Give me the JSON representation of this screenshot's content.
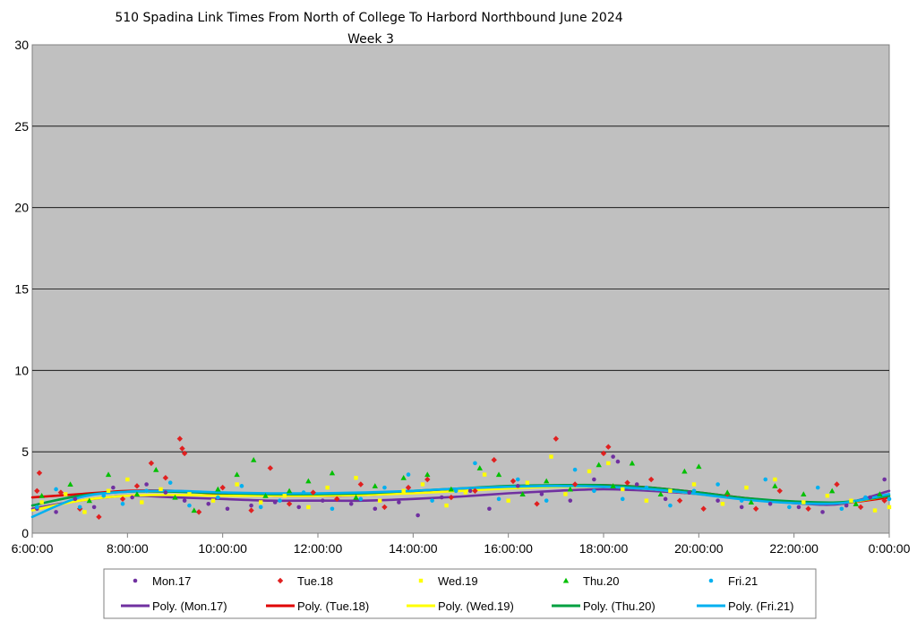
{
  "chart_data": {
    "type": "scatter",
    "title": "510 Spadina Link Times From North of College To Harbord Northbound June 2024",
    "subtitle": "Week 3",
    "xlabel": "",
    "ylabel": "",
    "x_range_hours": [
      6,
      24
    ],
    "x_ticks": [
      "6:00:00",
      "8:00:00",
      "10:00:00",
      "12:00:00",
      "14:00:00",
      "16:00:00",
      "18:00:00",
      "20:00:00",
      "22:00:00",
      "0:00:00"
    ],
    "ylim": [
      0,
      30
    ],
    "y_ticks": [
      "0",
      "5",
      "10",
      "15",
      "20",
      "25",
      "30"
    ],
    "grid": "horizontal",
    "plot_background": "#c0c0c0",
    "legend_position": "bottom",
    "series": [
      {
        "name": "Mon.17",
        "marker": "circle",
        "color": "#7030a0",
        "trend_name": "Poly. (Mon.17)",
        "trend": [
          [
            6.0,
            1.5
          ],
          [
            7.0,
            2.0
          ],
          [
            8.0,
            2.3
          ],
          [
            9.0,
            2.2
          ],
          [
            10.0,
            2.1
          ],
          [
            11.0,
            2.0
          ],
          [
            12.0,
            2.0
          ],
          [
            13.0,
            2.0
          ],
          [
            14.0,
            2.1
          ],
          [
            15.0,
            2.25
          ],
          [
            16.0,
            2.45
          ],
          [
            17.0,
            2.6
          ],
          [
            18.0,
            2.7
          ],
          [
            19.0,
            2.6
          ],
          [
            20.0,
            2.4
          ],
          [
            21.0,
            2.1
          ],
          [
            22.0,
            1.85
          ],
          [
            23.0,
            1.8
          ],
          [
            24.0,
            2.6
          ]
        ],
        "points": [
          [
            6.1,
            1.5
          ],
          [
            6.5,
            1.3
          ],
          [
            6.9,
            2.1
          ],
          [
            7.3,
            1.6
          ],
          [
            7.7,
            2.8
          ],
          [
            8.1,
            2.2
          ],
          [
            8.4,
            3.0
          ],
          [
            8.8,
            2.5
          ],
          [
            9.2,
            2.0
          ],
          [
            9.7,
            1.8
          ],
          [
            10.1,
            1.5
          ],
          [
            10.6,
            1.7
          ],
          [
            11.1,
            1.9
          ],
          [
            11.6,
            1.6
          ],
          [
            12.1,
            2.0
          ],
          [
            12.7,
            1.8
          ],
          [
            13.2,
            1.5
          ],
          [
            13.7,
            1.9
          ],
          [
            14.1,
            1.1
          ],
          [
            14.6,
            2.2
          ],
          [
            15.2,
            2.6
          ],
          [
            15.6,
            1.5
          ],
          [
            16.2,
            2.9
          ],
          [
            16.7,
            2.4
          ],
          [
            17.3,
            2.0
          ],
          [
            17.8,
            3.3
          ],
          [
            18.2,
            4.7
          ],
          [
            18.3,
            4.4
          ],
          [
            18.7,
            3.0
          ],
          [
            19.3,
            2.1
          ],
          [
            19.8,
            2.5
          ],
          [
            20.4,
            2.0
          ],
          [
            20.9,
            1.6
          ],
          [
            21.5,
            1.8
          ],
          [
            22.1,
            1.6
          ],
          [
            22.6,
            1.3
          ],
          [
            23.1,
            1.7
          ],
          [
            23.6,
            2.2
          ],
          [
            23.9,
            3.3
          ]
        ]
      },
      {
        "name": "Tue.18",
        "marker": "diamond",
        "color": "#e02020",
        "trend_name": "Poly. (Tue.18)",
        "trend": [
          [
            6.0,
            2.2
          ],
          [
            7.0,
            2.4
          ],
          [
            8.0,
            2.6
          ],
          [
            9.0,
            2.6
          ],
          [
            10.0,
            2.4
          ],
          [
            11.0,
            2.3
          ],
          [
            12.0,
            2.3
          ],
          [
            13.0,
            2.35
          ],
          [
            14.0,
            2.5
          ],
          [
            15.0,
            2.7
          ],
          [
            16.0,
            2.85
          ],
          [
            17.0,
            2.9
          ],
          [
            18.0,
            2.95
          ],
          [
            19.0,
            2.8
          ],
          [
            20.0,
            2.5
          ],
          [
            21.0,
            2.15
          ],
          [
            22.0,
            1.9
          ],
          [
            23.0,
            1.85
          ],
          [
            24.0,
            2.2
          ]
        ],
        "points": [
          [
            6.1,
            2.6
          ],
          [
            6.15,
            3.7
          ],
          [
            6.6,
            2.5
          ],
          [
            7.0,
            1.5
          ],
          [
            7.4,
            1.0
          ],
          [
            7.9,
            2.1
          ],
          [
            8.2,
            2.9
          ],
          [
            8.5,
            4.3
          ],
          [
            8.8,
            3.4
          ],
          [
            9.1,
            5.8
          ],
          [
            9.15,
            5.2
          ],
          [
            9.2,
            4.9
          ],
          [
            9.5,
            1.3
          ],
          [
            10.0,
            2.8
          ],
          [
            10.6,
            1.4
          ],
          [
            11.0,
            4.0
          ],
          [
            11.4,
            1.8
          ],
          [
            11.9,
            2.5
          ],
          [
            12.4,
            2.1
          ],
          [
            12.9,
            3.0
          ],
          [
            13.4,
            1.6
          ],
          [
            13.9,
            2.8
          ],
          [
            14.3,
            3.3
          ],
          [
            14.8,
            2.2
          ],
          [
            15.3,
            2.6
          ],
          [
            15.7,
            4.5
          ],
          [
            16.1,
            3.2
          ],
          [
            16.6,
            1.8
          ],
          [
            17.0,
            5.8
          ],
          [
            17.4,
            3.0
          ],
          [
            18.0,
            4.9
          ],
          [
            18.1,
            5.3
          ],
          [
            18.5,
            3.1
          ],
          [
            19.0,
            3.3
          ],
          [
            19.6,
            2.0
          ],
          [
            20.1,
            1.5
          ],
          [
            20.6,
            2.4
          ],
          [
            21.2,
            1.5
          ],
          [
            21.7,
            2.6
          ],
          [
            22.3,
            1.5
          ],
          [
            22.9,
            3.0
          ],
          [
            23.4,
            1.6
          ],
          [
            23.9,
            2.0
          ]
        ]
      },
      {
        "name": "Wed.19",
        "marker": "square",
        "color": "#ffff00",
        "trend_name": "Poly. (Wed.19)",
        "trend": [
          [
            6.0,
            1.4
          ],
          [
            7.0,
            2.0
          ],
          [
            8.0,
            2.3
          ],
          [
            9.0,
            2.35
          ],
          [
            10.0,
            2.3
          ],
          [
            11.0,
            2.3
          ],
          [
            12.0,
            2.3
          ],
          [
            13.0,
            2.35
          ],
          [
            14.0,
            2.45
          ],
          [
            15.0,
            2.6
          ],
          [
            16.0,
            2.75
          ],
          [
            17.0,
            2.85
          ],
          [
            18.0,
            2.85
          ],
          [
            19.0,
            2.7
          ],
          [
            20.0,
            2.4
          ],
          [
            21.0,
            2.1
          ],
          [
            22.0,
            1.9
          ],
          [
            23.0,
            1.85
          ],
          [
            24.0,
            2.3
          ]
        ],
        "points": [
          [
            6.2,
            1.9
          ],
          [
            6.7,
            2.4
          ],
          [
            7.1,
            1.3
          ],
          [
            7.6,
            2.6
          ],
          [
            8.0,
            3.3
          ],
          [
            8.3,
            1.9
          ],
          [
            8.7,
            2.7
          ],
          [
            9.3,
            2.4
          ],
          [
            9.8,
            2.0
          ],
          [
            10.3,
            3.0
          ],
          [
            10.8,
            1.9
          ],
          [
            11.3,
            2.3
          ],
          [
            11.8,
            1.6
          ],
          [
            12.2,
            2.8
          ],
          [
            12.8,
            3.4
          ],
          [
            13.3,
            2.0
          ],
          [
            13.8,
            2.6
          ],
          [
            14.2,
            3.0
          ],
          [
            14.7,
            1.7
          ],
          [
            15.1,
            2.5
          ],
          [
            15.5,
            3.6
          ],
          [
            16.0,
            2.0
          ],
          [
            16.4,
            3.1
          ],
          [
            16.9,
            4.7
          ],
          [
            17.2,
            2.4
          ],
          [
            17.7,
            3.8
          ],
          [
            18.1,
            4.3
          ],
          [
            18.4,
            2.7
          ],
          [
            18.9,
            2.0
          ],
          [
            19.4,
            2.6
          ],
          [
            19.9,
            3.0
          ],
          [
            20.5,
            1.8
          ],
          [
            21.0,
            2.8
          ],
          [
            21.6,
            3.3
          ],
          [
            22.2,
            1.9
          ],
          [
            22.7,
            2.3
          ],
          [
            23.2,
            2.0
          ],
          [
            23.7,
            1.4
          ],
          [
            24.0,
            1.6
          ]
        ]
      },
      {
        "name": "Thu.20",
        "marker": "triangle",
        "color": "#00c000",
        "trend_name": "Poly. (Thu.20)",
        "trend": [
          [
            6.0,
            1.7
          ],
          [
            7.0,
            2.3
          ],
          [
            8.0,
            2.55
          ],
          [
            9.0,
            2.55
          ],
          [
            10.0,
            2.45
          ],
          [
            11.0,
            2.4
          ],
          [
            12.0,
            2.4
          ],
          [
            13.0,
            2.45
          ],
          [
            14.0,
            2.6
          ],
          [
            15.0,
            2.75
          ],
          [
            16.0,
            2.9
          ],
          [
            17.0,
            2.95
          ],
          [
            18.0,
            2.95
          ],
          [
            19.0,
            2.8
          ],
          [
            20.0,
            2.5
          ],
          [
            21.0,
            2.15
          ],
          [
            22.0,
            1.95
          ],
          [
            23.0,
            1.9
          ],
          [
            24.0,
            2.3
          ]
        ],
        "points": [
          [
            6.2,
            2.3
          ],
          [
            6.8,
            3.0
          ],
          [
            7.2,
            2.0
          ],
          [
            7.6,
            3.6
          ],
          [
            8.2,
            2.4
          ],
          [
            8.6,
            3.9
          ],
          [
            9.0,
            2.2
          ],
          [
            9.4,
            1.4
          ],
          [
            9.9,
            2.7
          ],
          [
            10.3,
            3.6
          ],
          [
            10.65,
            4.5
          ],
          [
            10.9,
            2.3
          ],
          [
            11.4,
            2.6
          ],
          [
            11.8,
            3.2
          ],
          [
            12.3,
            3.7
          ],
          [
            12.8,
            2.2
          ],
          [
            13.2,
            2.9
          ],
          [
            13.8,
            3.4
          ],
          [
            14.3,
            3.6
          ],
          [
            14.8,
            2.7
          ],
          [
            15.4,
            4.0
          ],
          [
            15.8,
            3.6
          ],
          [
            16.3,
            2.4
          ],
          [
            16.8,
            3.2
          ],
          [
            17.3,
            2.7
          ],
          [
            17.9,
            4.2
          ],
          [
            18.2,
            2.9
          ],
          [
            18.6,
            4.3
          ],
          [
            19.2,
            2.4
          ],
          [
            19.7,
            3.8
          ],
          [
            20.0,
            4.1
          ],
          [
            20.6,
            2.5
          ],
          [
            21.1,
            1.9
          ],
          [
            21.6,
            2.9
          ],
          [
            22.2,
            2.4
          ],
          [
            22.8,
            2.6
          ],
          [
            23.3,
            1.8
          ],
          [
            23.8,
            2.4
          ]
        ]
      },
      {
        "name": "Fri.21",
        "marker": "circle",
        "color": "#00b0f0",
        "trend_name": "Poly. (Fri.21)",
        "trend": [
          [
            6.0,
            1.0
          ],
          [
            7.0,
            2.2
          ],
          [
            8.0,
            2.55
          ],
          [
            9.0,
            2.6
          ],
          [
            10.0,
            2.5
          ],
          [
            11.0,
            2.45
          ],
          [
            12.0,
            2.45
          ],
          [
            13.0,
            2.5
          ],
          [
            14.0,
            2.6
          ],
          [
            15.0,
            2.75
          ],
          [
            16.0,
            2.85
          ],
          [
            17.0,
            2.9
          ],
          [
            18.0,
            2.85
          ],
          [
            19.0,
            2.7
          ],
          [
            20.0,
            2.4
          ],
          [
            21.0,
            2.05
          ],
          [
            22.0,
            1.85
          ],
          [
            23.0,
            1.85
          ],
          [
            24.0,
            2.4
          ]
        ],
        "points": [
          [
            6.1,
            1.6
          ],
          [
            6.5,
            2.7
          ],
          [
            7.0,
            1.6
          ],
          [
            7.5,
            2.3
          ],
          [
            7.9,
            1.8
          ],
          [
            8.4,
            2.6
          ],
          [
            8.9,
            3.1
          ],
          [
            9.3,
            1.7
          ],
          [
            9.9,
            2.2
          ],
          [
            10.4,
            2.9
          ],
          [
            10.8,
            1.6
          ],
          [
            11.2,
            2.0
          ],
          [
            11.7,
            2.5
          ],
          [
            12.3,
            1.5
          ],
          [
            12.9,
            2.1
          ],
          [
            13.4,
            2.8
          ],
          [
            13.9,
            3.6
          ],
          [
            14.4,
            2.0
          ],
          [
            14.9,
            2.6
          ],
          [
            15.3,
            4.3
          ],
          [
            15.8,
            2.1
          ],
          [
            16.2,
            3.3
          ],
          [
            16.8,
            2.0
          ],
          [
            17.4,
            3.9
          ],
          [
            17.8,
            2.6
          ],
          [
            18.4,
            2.1
          ],
          [
            18.9,
            2.8
          ],
          [
            19.4,
            1.7
          ],
          [
            19.9,
            2.6
          ],
          [
            20.4,
            3.0
          ],
          [
            20.9,
            2.0
          ],
          [
            21.4,
            3.3
          ],
          [
            21.9,
            1.6
          ],
          [
            22.5,
            2.8
          ],
          [
            23.0,
            1.5
          ],
          [
            23.5,
            2.2
          ],
          [
            24.0,
            2.1
          ]
        ]
      }
    ]
  }
}
